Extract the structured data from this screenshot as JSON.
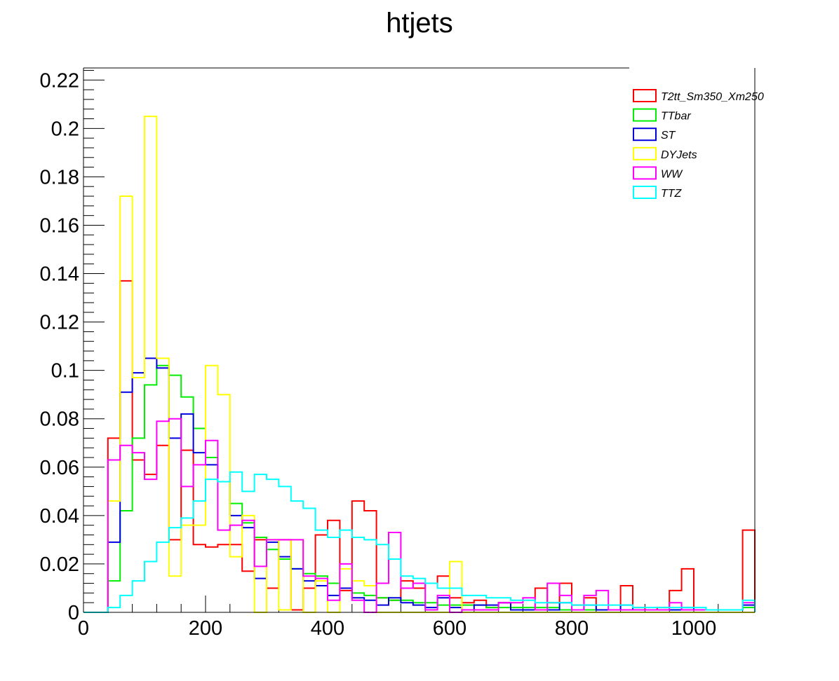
{
  "chart_data": {
    "type": "histogram",
    "title": "htjets",
    "xlabel": "",
    "ylabel": "",
    "xlim": [
      0,
      1100
    ],
    "ylim": [
      0,
      0.225
    ],
    "bin_width": 20,
    "x_ticks": [
      0,
      200,
      400,
      600,
      800,
      1000
    ],
    "x_tick_labels": [
      "0",
      "200",
      "400",
      "600",
      "800",
      "1000"
    ],
    "y_ticks": [
      0,
      0.02,
      0.04,
      0.06,
      0.08,
      0.1,
      0.12,
      0.14,
      0.16,
      0.18,
      0.2,
      0.22
    ],
    "y_tick_labels": [
      "0",
      "0.02",
      "0.04",
      "0.06",
      "0.08",
      "0.1",
      "0.12",
      "0.14",
      "0.16",
      "0.18",
      "0.2",
      "0.22"
    ],
    "legend_position": "top-right",
    "series": [
      {
        "name": "T2tt_Sm350_Xm250",
        "color": "#ff0000",
        "values": [
          0,
          0,
          0.072,
          0.137,
          0.063,
          0.057,
          0.069,
          0.03,
          0.067,
          0.028,
          0.027,
          0.028,
          0.028,
          0.017,
          0.03,
          0.01,
          0.03,
          0.001,
          0.01,
          0.032,
          0.038,
          0.009,
          0.046,
          0.042,
          0.006,
          0.005,
          0.013,
          0.01,
          0.012,
          0.015,
          0.006,
          0.004,
          0.005,
          0.002,
          0.004,
          0.001,
          0.001,
          0.01,
          0.004,
          0.012,
          0.003,
          0.006,
          0.001,
          0.001,
          0.011,
          0.002,
          0.001,
          0.002,
          0.009,
          0.018,
          0.001,
          0.001,
          0.001,
          0.001,
          0.034
        ]
      },
      {
        "name": "TTbar",
        "color": "#00ee00",
        "values": [
          0,
          0,
          0.013,
          0.042,
          0.072,
          0.094,
          0.102,
          0.098,
          0.089,
          0.076,
          0.064,
          0.054,
          0.045,
          0.037,
          0.031,
          0.026,
          0.022,
          0.018,
          0.016,
          0.015,
          0.012,
          0.01,
          0.008,
          0.007,
          0.006,
          0.005,
          0.005,
          0.004,
          0.004,
          0.003,
          0.003,
          0.003,
          0.003,
          0.002,
          0.002,
          0.002,
          0.002,
          0.002,
          0.002,
          0.001,
          0.001,
          0.001,
          0.001,
          0.001,
          0.001,
          0.001,
          0.001,
          0.001,
          0.001,
          0.001,
          0.001,
          0.001,
          0.001,
          0.001,
          0.002
        ]
      },
      {
        "name": "ST",
        "color": "#0000dd",
        "values": [
          0,
          0,
          0.029,
          0.091,
          0.099,
          0.105,
          0.101,
          0.072,
          0.082,
          0.066,
          0.061,
          0.054,
          0.04,
          0.035,
          0.014,
          0.029,
          0.023,
          0.018,
          0.013,
          0.011,
          0.007,
          0.01,
          0.006,
          0.005,
          0.003,
          0.006,
          0.004,
          0.003,
          0.002,
          0.006,
          0.002,
          0.001,
          0.003,
          0.003,
          0.004,
          0.001,
          0.001,
          0.001,
          0.001,
          0.004,
          0.001,
          0.003,
          0.001,
          0.001,
          0.003,
          0.001,
          0.001,
          0.001,
          0.001,
          0.002,
          0.001,
          0.001,
          0.001,
          0.001,
          0.003
        ]
      },
      {
        "name": "DYJets",
        "color": "#ffff00",
        "values": [
          0,
          0,
          0.046,
          0.172,
          0.097,
          0.205,
          0.105,
          0.015,
          0.036,
          0.036,
          0.102,
          0.09,
          0.023,
          0.04,
          0.0,
          0.03,
          0.001,
          0.03,
          0.0,
          0.013,
          0.0,
          0.018,
          0.013,
          0.011,
          0.0,
          0.0,
          0.0,
          0.0,
          0.0,
          0.0,
          0.021,
          0.0,
          0.0,
          0.0,
          0.0,
          0.0,
          0.0,
          0.0,
          0.0,
          0.0,
          0.0,
          0.0,
          0.0,
          0.0,
          0.0,
          0.0,
          0.0,
          0.0,
          0.0,
          0.0,
          0.0,
          0.0,
          0.0,
          0.0,
          0.0
        ]
      },
      {
        "name": "WW",
        "color": "#ff00ff",
        "values": [
          0,
          0,
          0.063,
          0.069,
          0.066,
          0.055,
          0.079,
          0.08,
          0.052,
          0.061,
          0.071,
          0.034,
          0.036,
          0.038,
          0.019,
          0.03,
          0.03,
          0.03,
          0.015,
          0.014,
          0.005,
          0.02,
          0.005,
          0.0,
          0.012,
          0.033,
          0.01,
          0.012,
          0.001,
          0.007,
          0.0,
          0.001,
          0.001,
          0.001,
          0.004,
          0.004,
          0.006,
          0.001,
          0.012,
          0.007,
          0.001,
          0.007,
          0.009,
          0.001,
          0.001,
          0.001,
          0.001,
          0.001,
          0.004,
          0.001,
          0.001,
          0.001,
          0.001,
          0.001,
          0.004
        ]
      },
      {
        "name": "TTZ",
        "color": "#00ffff",
        "values": [
          0,
          0,
          0.002,
          0.007,
          0.013,
          0.021,
          0.029,
          0.035,
          0.039,
          0.046,
          0.055,
          0.054,
          0.058,
          0.05,
          0.057,
          0.055,
          0.052,
          0.046,
          0.043,
          0.034,
          0.031,
          0.034,
          0.031,
          0.03,
          0.028,
          0.022,
          0.015,
          0.014,
          0.012,
          0.01,
          0.01,
          0.007,
          0.007,
          0.006,
          0.006,
          0.005,
          0.005,
          0.004,
          0.004,
          0.004,
          0.003,
          0.003,
          0.003,
          0.003,
          0.003,
          0.002,
          0.002,
          0.002,
          0.002,
          0.002,
          0.002,
          0.001,
          0.001,
          0.001,
          0.005
        ]
      }
    ]
  }
}
